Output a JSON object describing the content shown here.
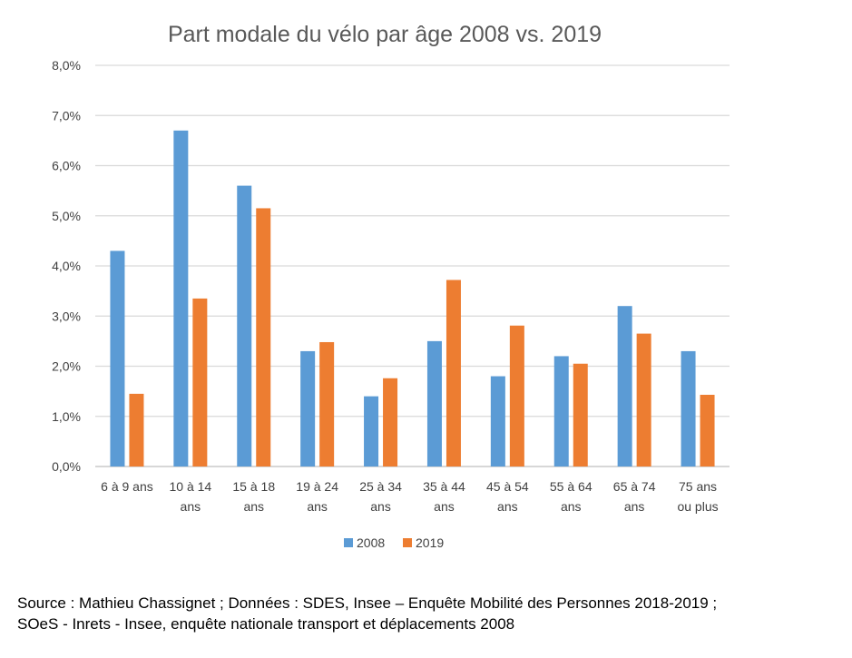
{
  "chart_data": {
    "type": "bar",
    "title": "Part modale du vélo par âge 2008 vs. 2019",
    "xlabel": "",
    "ylabel": "",
    "categories": [
      [
        "6 à 9 ans"
      ],
      [
        "10 à 14",
        "ans"
      ],
      [
        "15 à 18",
        "ans"
      ],
      [
        "19 à 24",
        "ans"
      ],
      [
        "25 à 34",
        "ans"
      ],
      [
        "35 à 44",
        "ans"
      ],
      [
        "45 à 54",
        "ans"
      ],
      [
        "55 à 64",
        "ans"
      ],
      [
        "65 à 74",
        "ans"
      ],
      [
        "75 ans",
        "ou plus"
      ]
    ],
    "series": [
      {
        "name": "2008",
        "color": "#5B9BD5",
        "values": [
          4.3,
          6.7,
          5.6,
          2.3,
          1.4,
          2.5,
          1.8,
          2.2,
          3.2,
          2.3
        ]
      },
      {
        "name": "2019",
        "color": "#ED7D31",
        "values": [
          1.45,
          3.35,
          5.15,
          2.48,
          1.76,
          3.72,
          2.81,
          2.05,
          2.65,
          1.43
        ]
      }
    ],
    "ylim": [
      0,
      8
    ],
    "yticks": [
      "0,0%",
      "1,0%",
      "2,0%",
      "3,0%",
      "4,0%",
      "5,0%",
      "6,0%",
      "7,0%",
      "8,0%"
    ],
    "grid": true,
    "legend_position": "bottom"
  },
  "source": {
    "line1": "Source : Mathieu Chassignet ; Données : SDES, Insee – Enquête Mobilité des Personnes 2018-2019 ;",
    "line2": "SOeS - Inrets - Insee, enquête nationale transport et déplacements 2008"
  }
}
